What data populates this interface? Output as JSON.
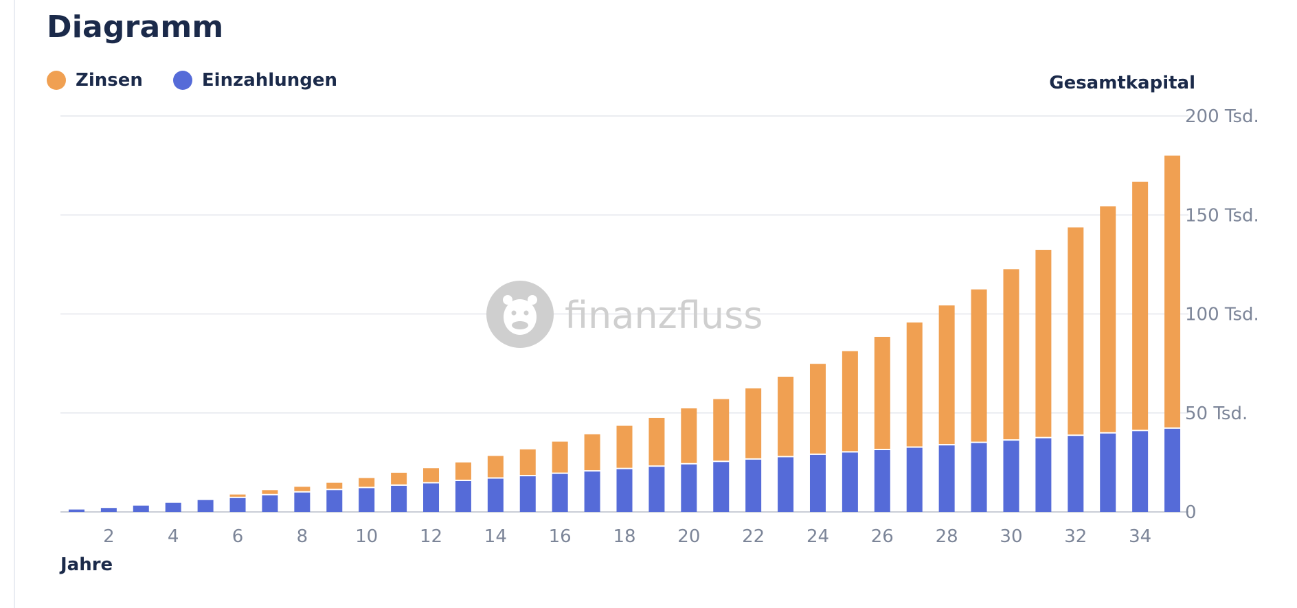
{
  "page": {
    "title": "Diagramm"
  },
  "legend": [
    {
      "label": "Zinsen",
      "color": "#f0a052"
    },
    {
      "label": "Einzahlungen",
      "color": "#556bd8"
    }
  ],
  "watermark": {
    "text": "finanzfluss",
    "icon": "hippo-logo-icon"
  },
  "chart_data": {
    "type": "bar",
    "stacked": true,
    "title": "Diagramm",
    "xlabel": "Jahre",
    "ylabel": "Gesamtkapital",
    "y_axis_position": "right",
    "legend_position": "top-left",
    "grid": true,
    "xlim": [
      1,
      35
    ],
    "ylim": [
      0,
      200000
    ],
    "y_ticks": [
      {
        "value": 0,
        "label": "0"
      },
      {
        "value": 50000,
        "label": "50 Tsd."
      },
      {
        "value": 100000,
        "label": "100 Tsd."
      },
      {
        "value": 150000,
        "label": "150 Tsd."
      },
      {
        "value": 200000,
        "label": "200 Tsd."
      }
    ],
    "x_ticks": [
      "2",
      "4",
      "6",
      "8",
      "10",
      "12",
      "14",
      "16",
      "18",
      "20",
      "22",
      "24",
      "26",
      "28",
      "30",
      "32",
      "34"
    ],
    "categories": [
      1,
      2,
      3,
      4,
      5,
      6,
      7,
      8,
      9,
      10,
      11,
      12,
      13,
      14,
      15,
      16,
      17,
      18,
      19,
      20,
      21,
      22,
      23,
      24,
      25,
      26,
      27,
      28,
      29,
      30,
      31,
      32,
      33,
      34,
      35
    ],
    "series": [
      {
        "name": "Einzahlungen",
        "color": "#556bd8",
        "values": [
          1200,
          2000,
          3200,
          4600,
          6000,
          7000,
          8400,
          9800,
          11000,
          12000,
          13200,
          14400,
          15600,
          16800,
          18000,
          19200,
          20400,
          21600,
          22800,
          24000,
          25200,
          26400,
          27600,
          28800,
          30000,
          31200,
          32400,
          33600,
          34800,
          36000,
          37200,
          38400,
          39600,
          40800,
          42000
        ]
      },
      {
        "name": "Zinsen",
        "color": "#f0a052",
        "values": [
          0,
          0,
          0,
          0,
          0,
          1800,
          2600,
          2900,
          3700,
          5100,
          6600,
          7700,
          9400,
          11500,
          13600,
          16300,
          18800,
          21900,
          24700,
          28300,
          31800,
          36000,
          40700,
          46000,
          51200,
          57200,
          63300,
          70700,
          77600,
          86600,
          95200,
          105300,
          114800,
          126000,
          138000
        ]
      }
    ]
  }
}
